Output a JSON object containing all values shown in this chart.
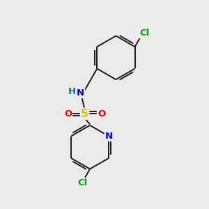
{
  "background_color": "#ebebeb",
  "bond_color": "#1a1a1a",
  "atom_colors": {
    "Cl_top": "#00aa00",
    "N_amine": "#0000ee",
    "H": "#007777",
    "S": "#cccc00",
    "O": "#ee0000",
    "N_pyridine": "#0000ee",
    "Cl_bottom": "#00aa00"
  },
  "figsize": [
    3.0,
    3.0
  ],
  "dpi": 100
}
